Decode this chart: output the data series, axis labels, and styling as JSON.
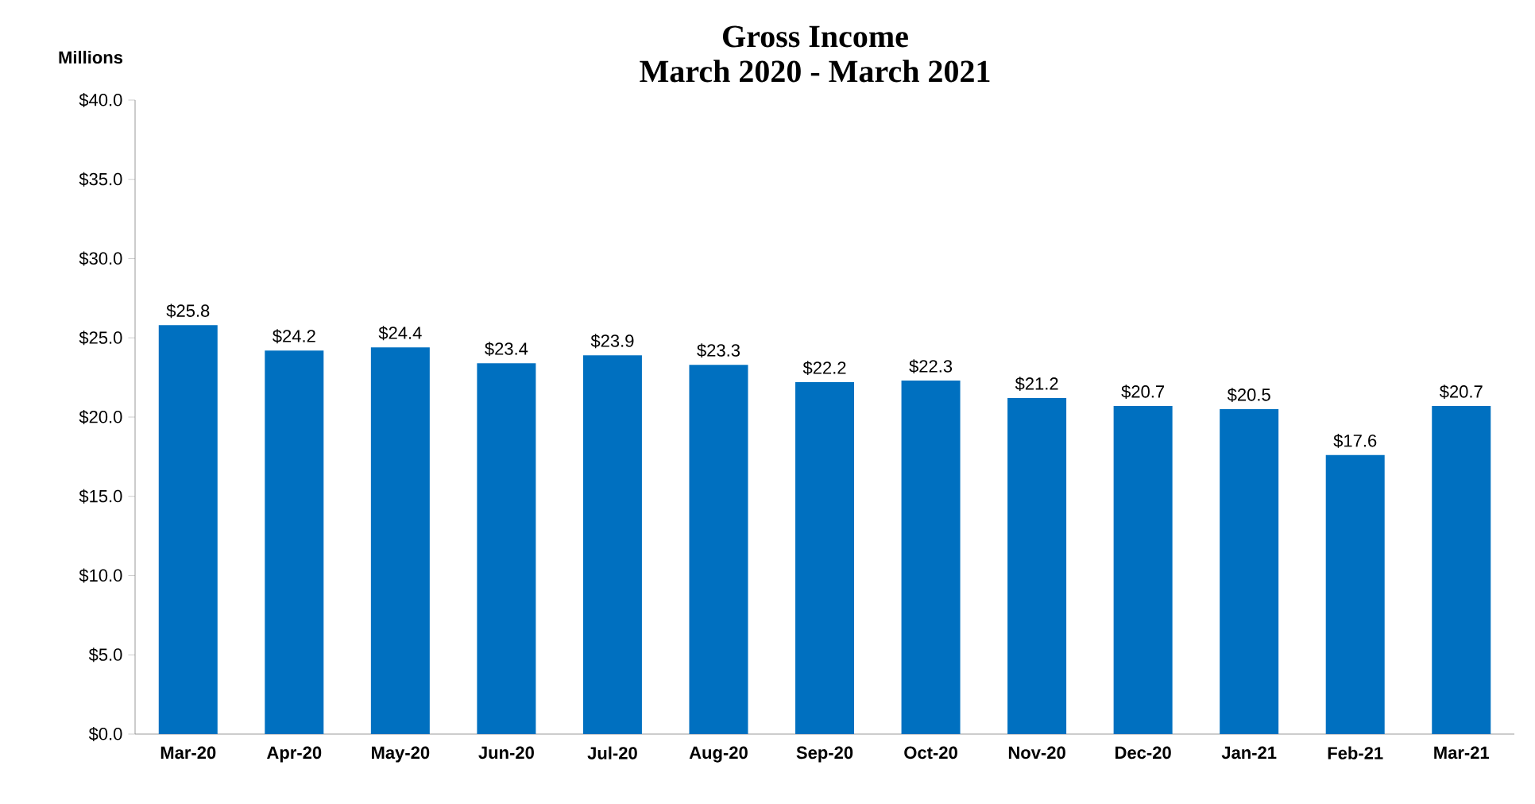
{
  "chart_data": {
    "type": "bar",
    "title": "Gross Income",
    "subtitle": "March 2020 - March 2021",
    "ylabel": "Millions",
    "categories": [
      "Mar-20",
      "Apr-20",
      "May-20",
      "Jun-20",
      "Jul-20",
      "Aug-20",
      "Sep-20",
      "Oct-20",
      "Nov-20",
      "Dec-20",
      "Jan-21",
      "Feb-21",
      "Mar-21"
    ],
    "values": [
      25.8,
      24.2,
      24.4,
      23.4,
      23.9,
      23.3,
      22.2,
      22.3,
      21.2,
      20.7,
      20.5,
      17.6,
      20.7
    ],
    "value_labels": [
      "$25.8",
      "$24.2",
      "$24.4",
      "$23.4",
      "$23.9",
      "$23.3",
      "$22.2",
      "$22.3",
      "$21.2",
      "$20.7",
      "$20.5",
      "$17.6",
      "$20.7"
    ],
    "color": "#0070c0",
    "ylim": [
      0,
      40
    ],
    "yticks": [
      {
        "value": 0,
        "label": "$0.0"
      },
      {
        "value": 5,
        "label": "$5.0"
      },
      {
        "value": 10,
        "label": "$10.0"
      },
      {
        "value": 15,
        "label": "$15.0"
      },
      {
        "value": 20,
        "label": "$20.0"
      },
      {
        "value": 25,
        "label": "$25.0"
      },
      {
        "value": 30,
        "label": "$30.0"
      },
      {
        "value": 35,
        "label": "$35.0"
      },
      {
        "value": 40,
        "label": "$40.0"
      }
    ],
    "grid": false
  }
}
